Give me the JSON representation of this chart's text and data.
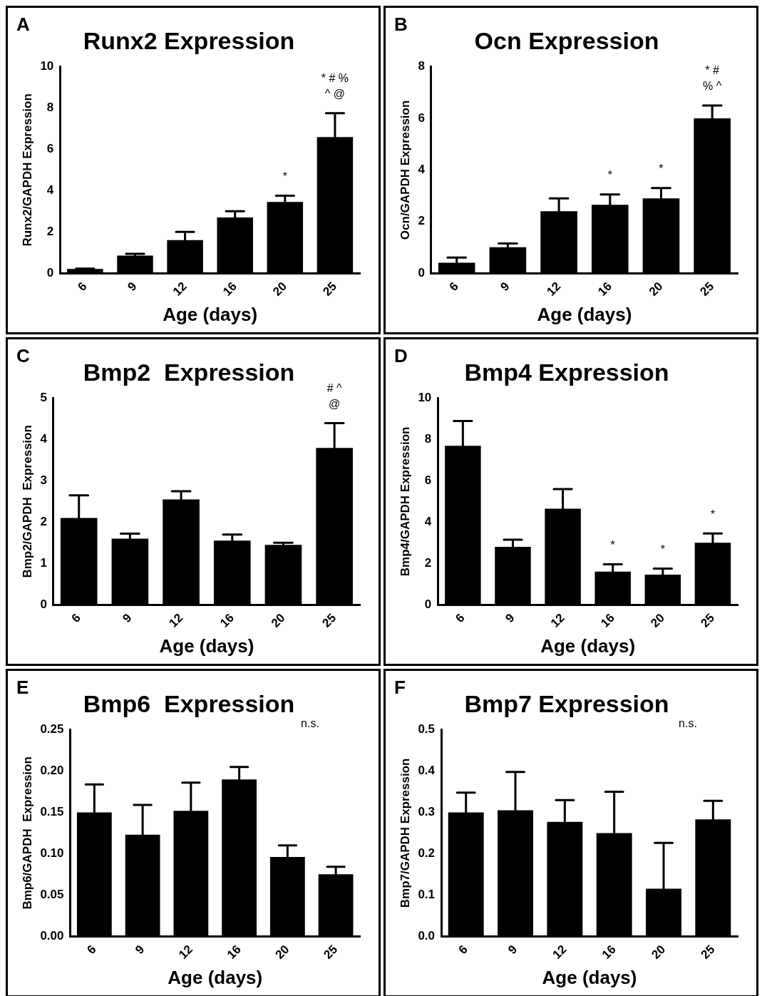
{
  "chart_data": [
    {
      "type": "bar",
      "title": "Runx2 Expression",
      "xlabel": "Age (days)",
      "ylabel": "Runx2/GAPDH Expression",
      "categories": [
        "6",
        "9",
        "12",
        "16",
        "20",
        "25"
      ],
      "values": [
        0.2,
        0.85,
        1.6,
        2.7,
        3.45,
        6.6
      ],
      "errors": [
        [
          0.2,
          0.22
        ],
        [
          0.85,
          0.93
        ],
        [
          1.6,
          2.0
        ],
        [
          2.7,
          3.0
        ],
        [
          3.45,
          3.75
        ],
        [
          6.6,
          7.75
        ]
      ],
      "color": "#000000",
      "ylim": [
        0,
        10
      ],
      "yticks": [
        0,
        2,
        4,
        6,
        8,
        10
      ],
      "annotations": [
        "A",
        {
          "text": "*",
          "x": "20",
          "y": 3.75
        },
        {
          "text": "* # %",
          "x": "25",
          "y": 7.75
        },
        {
          "text": "^ @",
          "x": "25",
          "y": 7.75
        }
      ]
    },
    {
      "type": "bar",
      "title": "Ocn Expression",
      "xlabel": "Age (days)",
      "ylabel": "Ocn/GAPDH Expression",
      "categories": [
        "6",
        "9",
        "12",
        "16",
        "20",
        "25"
      ],
      "values": [
        0.4,
        1.0,
        2.4,
        2.65,
        2.9,
        6.0
      ],
      "errors": [
        [
          0.4,
          0.6
        ],
        [
          1.0,
          1.15
        ],
        [
          2.4,
          2.9
        ],
        [
          2.65,
          3.05
        ],
        [
          2.9,
          3.3
        ],
        [
          6.0,
          6.5
        ]
      ],
      "color": "#000000",
      "ylim": [
        0,
        8
      ],
      "yticks": [
        0,
        2,
        4,
        6,
        8
      ],
      "annotations": [
        "B",
        {
          "text": "*",
          "x": "16",
          "y": 3.05
        },
        {
          "text": "*",
          "x": "20",
          "y": 3.3
        },
        {
          "text": "* #",
          "x": "25",
          "y": 6.5
        },
        {
          "text": "% ^",
          "x": "25",
          "y": 6.5
        }
      ]
    },
    {
      "type": "bar",
      "title": "Bmp2  Expression",
      "xlabel": "Age (days)",
      "ylabel": "Bmp2/GAPDH  Expression",
      "categories": [
        "6",
        "9",
        "12",
        "16",
        "20",
        "25"
      ],
      "values": [
        2.1,
        1.6,
        2.55,
        1.55,
        1.45,
        3.8
      ],
      "errors": [
        [
          2.1,
          2.65
        ],
        [
          1.6,
          1.72
        ],
        [
          2.55,
          2.75
        ],
        [
          1.55,
          1.7
        ],
        [
          1.45,
          1.5
        ],
        [
          3.8,
          4.4
        ]
      ],
      "color": "#000000",
      "ylim": [
        0,
        5
      ],
      "yticks": [
        0,
        1,
        2,
        3,
        4,
        5
      ],
      "annotations": [
        "C",
        {
          "text": "# ^",
          "x": "25",
          "y": 4.4
        },
        {
          "text": "@",
          "x": "25",
          "y": 4.4
        }
      ]
    },
    {
      "type": "bar",
      "title": "Bmp4 Expression",
      "xlabel": "Age (days)",
      "ylabel": "Bmp4/GAPDH Expression",
      "categories": [
        "6",
        "9",
        "12",
        "16",
        "20",
        "25"
      ],
      "values": [
        7.7,
        2.8,
        4.65,
        1.6,
        1.45,
        3.0
      ],
      "errors": [
        [
          7.7,
          8.9
        ],
        [
          2.8,
          3.15
        ],
        [
          4.65,
          5.6
        ],
        [
          1.6,
          1.95
        ],
        [
          1.45,
          1.75
        ],
        [
          3.0,
          3.45
        ]
      ],
      "color": "#000000",
      "ylim": [
        0,
        10
      ],
      "yticks": [
        0,
        2,
        4,
        6,
        8,
        10
      ],
      "annotations": [
        "D",
        {
          "text": "*",
          "x": "16",
          "y": 1.95
        },
        {
          "text": "*",
          "x": "20",
          "y": 1.75
        },
        {
          "text": "*",
          "x": "25",
          "y": 3.45
        }
      ]
    },
    {
      "type": "bar",
      "title": "Bmp6  Expression",
      "xlabel": "Age (days)",
      "ylabel": "Bmp6/GAPDH  Expression",
      "categories": [
        "6",
        "9",
        "12",
        "16",
        "20",
        "25"
      ],
      "values": [
        0.15,
        0.123,
        0.152,
        0.19,
        0.096,
        0.075
      ],
      "errors": [
        [
          0.15,
          0.184
        ],
        [
          0.123,
          0.159
        ],
        [
          0.152,
          0.186
        ],
        [
          0.19,
          0.205
        ],
        [
          0.096,
          0.11
        ],
        [
          0.075,
          0.084
        ]
      ],
      "color": "#000000",
      "ylim": [
        0,
        0.25
      ],
      "yticks": [
        {
          "value": 0,
          "label": "0.00"
        },
        0.05,
        {
          "value": 0.1,
          "label": "0.10"
        },
        0.15,
        {
          "value": 0.2,
          "label": "0.20"
        },
        0.25
      ],
      "annotations": [
        "E",
        "n.s."
      ]
    },
    {
      "type": "bar",
      "title": "Bmp7 Expression",
      "xlabel": "Age (days)",
      "ylabel": "Bmp7/GAPDH Expression",
      "categories": [
        "6",
        "9",
        "12",
        "16",
        "20",
        "25"
      ],
      "values": [
        0.3,
        0.305,
        0.277,
        0.25,
        0.115,
        0.283
      ],
      "errors": [
        [
          0.3,
          0.348
        ],
        [
          0.305,
          0.398
        ],
        [
          0.277,
          0.33
        ],
        [
          0.25,
          0.35
        ],
        [
          0.115,
          0.226
        ],
        [
          0.283,
          0.328
        ]
      ],
      "color": "#000000",
      "ylim": [
        0,
        0.5
      ],
      "yticks": [
        {
          "value": 0,
          "label": "0.0"
        },
        0.1,
        0.2,
        0.3,
        0.4,
        0.5
      ],
      "annotations": [
        "F",
        "n.s."
      ]
    }
  ]
}
